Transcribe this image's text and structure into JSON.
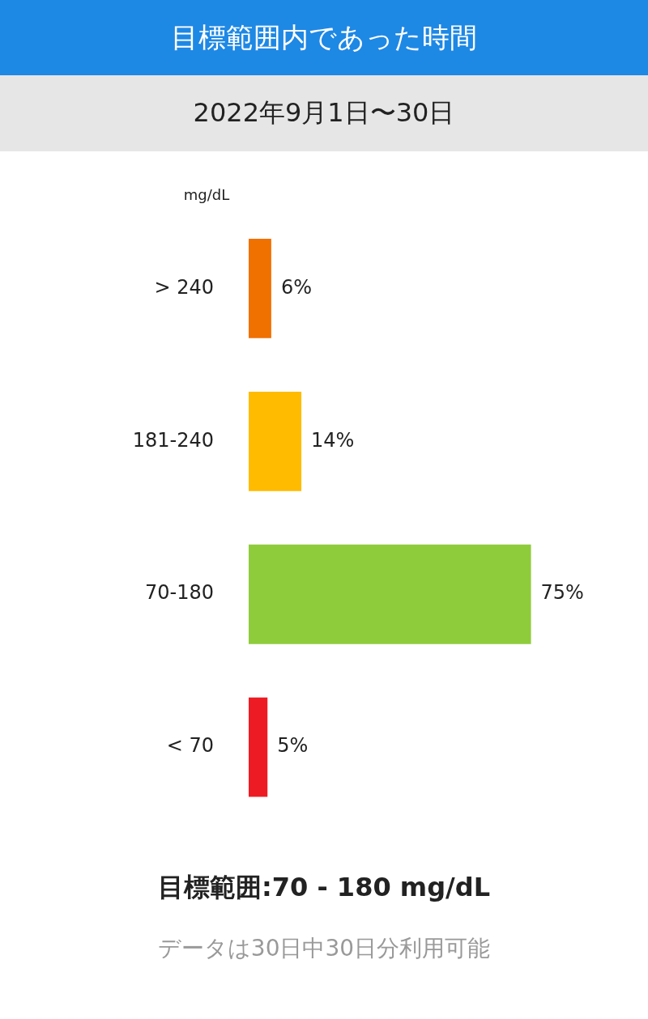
{
  "chart_data": {
    "type": "bar",
    "orientation": "horizontal",
    "title": "目標範囲内であった時間",
    "subtitle": "2022年9月1日〜30日",
    "ylabel": "mg/dL",
    "categories": [
      "> 240",
      "181-240",
      "70-180",
      "< 70"
    ],
    "values": [
      6,
      14,
      75,
      5
    ],
    "colors": [
      "#f07000",
      "#ffbb00",
      "#8fcc3c",
      "#ed1c24"
    ],
    "value_labels": [
      "6%",
      "14%",
      "75%",
      "5%"
    ],
    "grid": false,
    "legend": false,
    "annotations": [
      "目標範囲:70 - 180 mg/dL",
      "データは30日中30日分利用可能"
    ]
  }
}
